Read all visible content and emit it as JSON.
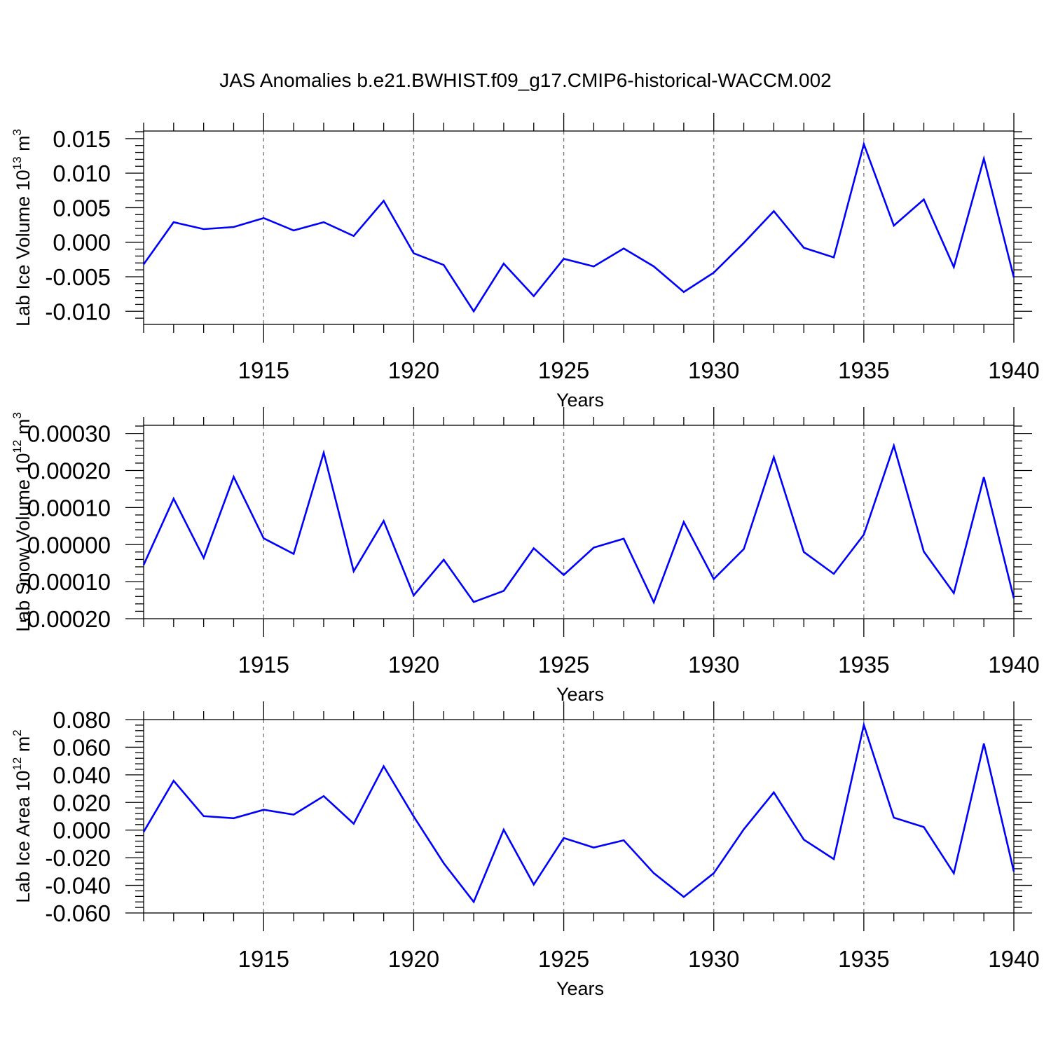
{
  "title": "JAS Anomalies b.e21.BWHIST.f09_g17.CMIP6-historical-WACCM.002",
  "line_color": "#0000ff",
  "chart_data": [
    {
      "type": "line",
      "ylabel": "Lab Ice Volume 10",
      "ylabel_exp": "13",
      "ylabel_unit": " m",
      "ylabel_unit_exp": "3",
      "xlabel": "Years",
      "xlim": [
        1911,
        1940
      ],
      "ylim": [
        -0.0119,
        0.0161
      ],
      "yticks": [
        -0.01,
        -0.005,
        0.0,
        0.005,
        0.01,
        0.015
      ],
      "ytick_labels": [
        "-0.010",
        "-0.005",
        "0.000",
        "0.005",
        "0.010",
        "0.015"
      ],
      "xticks": [
        1915,
        1920,
        1925,
        1930,
        1935,
        1940
      ],
      "xtick_labels": [
        "1915",
        "1920",
        "1925",
        "1930",
        "1935",
        "1940"
      ],
      "x": [
        1911,
        1912,
        1913,
        1914,
        1915,
        1916,
        1917,
        1918,
        1919,
        1920,
        1921,
        1922,
        1923,
        1924,
        1925,
        1926,
        1927,
        1928,
        1929,
        1930,
        1931,
        1932,
        1933,
        1934,
        1935,
        1936,
        1937,
        1938,
        1939,
        1940
      ],
      "values": [
        -0.0032,
        0.0029,
        0.0019,
        0.0022,
        0.0035,
        0.0017,
        0.0029,
        0.0009,
        0.006,
        -0.0016,
        -0.0033,
        -0.01,
        -0.0031,
        -0.0078,
        -0.0024,
        -0.0035,
        -0.0009,
        -0.0035,
        -0.0072,
        -0.0044,
        -0.0001,
        0.0045,
        -0.0008,
        -0.0022,
        0.0142,
        0.0024,
        0.0062,
        -0.0036,
        0.0121,
        -0.0051
      ]
    },
    {
      "type": "line",
      "ylabel": "Lab Snow Volume 10",
      "ylabel_exp": "12",
      "ylabel_unit": " m",
      "ylabel_unit_exp": "3",
      "xlabel": "Years",
      "xlim": [
        1911,
        1940
      ],
      "ylim": [
        -0.0002,
        0.000322
      ],
      "yticks": [
        -0.0002,
        -0.0001,
        0.0,
        0.0001,
        0.0002,
        0.0003
      ],
      "ytick_labels": [
        "-0.00020",
        "-0.00010",
        "0.00000",
        "0.00010",
        "0.00020",
        "0.00030"
      ],
      "xticks": [
        1915,
        1920,
        1925,
        1930,
        1935,
        1940
      ],
      "xtick_labels": [
        "1915",
        "1920",
        "1925",
        "1930",
        "1935",
        "1940"
      ],
      "x": [
        1911,
        1912,
        1913,
        1914,
        1915,
        1916,
        1917,
        1918,
        1919,
        1920,
        1921,
        1922,
        1923,
        1924,
        1925,
        1926,
        1927,
        1928,
        1929,
        1930,
        1931,
        1932,
        1933,
        1934,
        1935,
        1936,
        1937,
        1938,
        1939,
        1940
      ],
      "values": [
        -5.5e-05,
        0.000124,
        -3.6e-05,
        0.000183,
        1.7e-05,
        -2.5e-05,
        0.000248,
        -7.2e-05,
        6.4e-05,
        -0.000137,
        -4.1e-05,
        -0.000155,
        -0.000125,
        -1e-05,
        -8.2e-05,
        -8e-06,
        1.6e-05,
        -0.000156,
        6.1e-05,
        -9.3e-05,
        -1.2e-05,
        0.000236,
        -2e-05,
        -7.9e-05,
        2.7e-05,
        0.000267,
        -1.9e-05,
        -0.000131,
        0.000182,
        -0.000145
      ]
    },
    {
      "type": "line",
      "ylabel": "Lab Ice Area 10",
      "ylabel_exp": "12",
      "ylabel_unit": " m",
      "ylabel_unit_exp": "2",
      "xlabel": "Years",
      "xlim": [
        1911,
        1940
      ],
      "ylim": [
        -0.06,
        0.08
      ],
      "yticks": [
        -0.06,
        -0.04,
        -0.02,
        0.0,
        0.02,
        0.04,
        0.06,
        0.08
      ],
      "ytick_labels": [
        "-0.060",
        "-0.040",
        "-0.020",
        "0.000",
        "0.020",
        "0.040",
        "0.060",
        "0.080"
      ],
      "xticks": [
        1915,
        1920,
        1925,
        1930,
        1935,
        1940
      ],
      "xtick_labels": [
        "1915",
        "1920",
        "1925",
        "1930",
        "1935",
        "1940"
      ],
      "x": [
        1911,
        1912,
        1913,
        1914,
        1915,
        1916,
        1917,
        1918,
        1919,
        1920,
        1921,
        1922,
        1923,
        1924,
        1925,
        1926,
        1927,
        1928,
        1929,
        1930,
        1931,
        1932,
        1933,
        1934,
        1935,
        1936,
        1937,
        1938,
        1939,
        1940
      ],
      "values": [
        -0.0013,
        0.0357,
        0.0101,
        0.0086,
        0.0147,
        0.0112,
        0.0246,
        0.0046,
        0.0462,
        0.0099,
        -0.024,
        -0.052,
        0.0003,
        -0.0394,
        -0.0057,
        -0.0126,
        -0.0074,
        -0.0312,
        -0.0484,
        -0.0312,
        0.0006,
        0.0273,
        -0.0069,
        -0.021,
        0.0761,
        0.009,
        0.0022,
        -0.0313,
        0.0626,
        -0.03
      ]
    }
  ]
}
